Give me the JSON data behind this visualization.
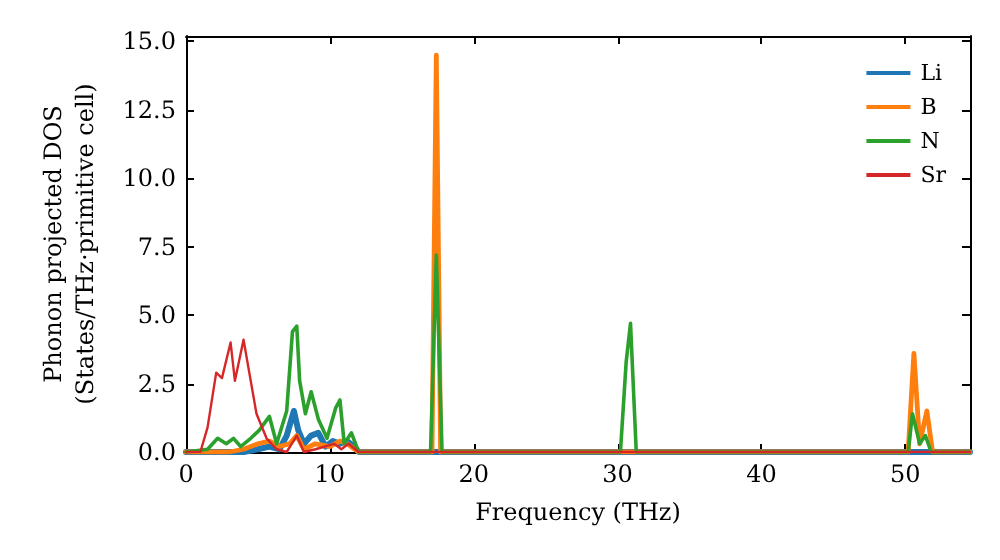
{
  "chart_data": {
    "type": "line",
    "xlabel": "Frequency (THz)",
    "ylabel": "Phonon projected DOS\n(States/THz·primitive cell)",
    "xlim": [
      0,
      54.5
    ],
    "ylim": [
      0,
      15.2
    ],
    "xticks": [
      0,
      10,
      20,
      30,
      40,
      50
    ],
    "yticks": [
      {
        "value": 0,
        "label": "0.0"
      },
      {
        "value": 2.5,
        "label": "2.5"
      },
      {
        "value": 5,
        "label": "5.0"
      },
      {
        "value": 7.5,
        "label": "7.5"
      },
      {
        "value": 10,
        "label": "10.0"
      },
      {
        "value": 12.5,
        "label": "12.5"
      },
      {
        "value": 15,
        "label": "15.0"
      }
    ],
    "grid": false,
    "legend": "top right",
    "marker": "none",
    "line_style": "solid",
    "series": [
      {
        "name": "Li",
        "color": "#1f77b4",
        "x": [
          0,
          4,
          5,
          5.8,
          6.5,
          7,
          7.5,
          7.8,
          8.2,
          8.7,
          9.2,
          9.7,
          10.2,
          10.7,
          11.2,
          11.7,
          12,
          54.5
        ],
        "values": [
          0,
          0,
          0.1,
          0.2,
          0.1,
          0.6,
          1.5,
          0.8,
          0.3,
          0.6,
          0.7,
          0.2,
          0.4,
          0.3,
          0.4,
          0.2,
          0,
          0
        ]
      },
      {
        "name": "B",
        "color": "#ff7f0e",
        "x": [
          0,
          3,
          4,
          5,
          5.8,
          6.5,
          7.2,
          7.7,
          8.2,
          9,
          10,
          10.7,
          11.2,
          12,
          17.1,
          17.4,
          17.7,
          18,
          50.2,
          50.6,
          51,
          51.5,
          51.9,
          54.5
        ],
        "values": [
          0,
          0,
          0.1,
          0.3,
          0.4,
          0.2,
          0.3,
          0.6,
          0.1,
          0.3,
          0.2,
          0.4,
          0.3,
          0,
          0,
          14.5,
          0,
          0,
          0,
          3.6,
          0.3,
          1.5,
          0,
          0
        ]
      },
      {
        "name": "N",
        "color": "#2ca02c",
        "x": [
          0,
          1.5,
          2.2,
          2.8,
          3.3,
          3.8,
          4.5,
          5.1,
          5.8,
          6.3,
          7,
          7.4,
          7.7,
          7.9,
          8.3,
          8.7,
          9.2,
          9.8,
          10.4,
          10.7,
          11,
          11.5,
          12,
          17,
          17.4,
          17.8,
          18,
          30.2,
          30.6,
          30.9,
          31.3,
          50.2,
          50.5,
          51,
          51.4,
          51.8,
          54.5
        ],
        "values": [
          0,
          0.1,
          0.5,
          0.3,
          0.5,
          0.2,
          0.5,
          0.8,
          1.3,
          0.3,
          1.5,
          4.4,
          4.6,
          2.6,
          1.4,
          2.2,
          1.2,
          0.5,
          1.6,
          1.9,
          0.3,
          0.7,
          0,
          0,
          7.2,
          0,
          0,
          0,
          3.3,
          4.7,
          0,
          0,
          1.4,
          0.3,
          0.6,
          0,
          0
        ]
      },
      {
        "name": "Sr",
        "color": "#d62728",
        "x": [
          0,
          1,
          1.5,
          2.1,
          2.5,
          3.1,
          3.4,
          4,
          4.5,
          4.9,
          5.6,
          6.3,
          7,
          7.7,
          8.2,
          9,
          10.3,
          10.8,
          11.3,
          12,
          54.5
        ],
        "values": [
          0,
          0,
          0.9,
          2.9,
          2.7,
          4.0,
          2.6,
          4.1,
          2.6,
          1.4,
          0.5,
          0.1,
          0,
          0.6,
          0,
          0.1,
          0.3,
          0.1,
          0.3,
          0,
          0
        ]
      }
    ]
  }
}
